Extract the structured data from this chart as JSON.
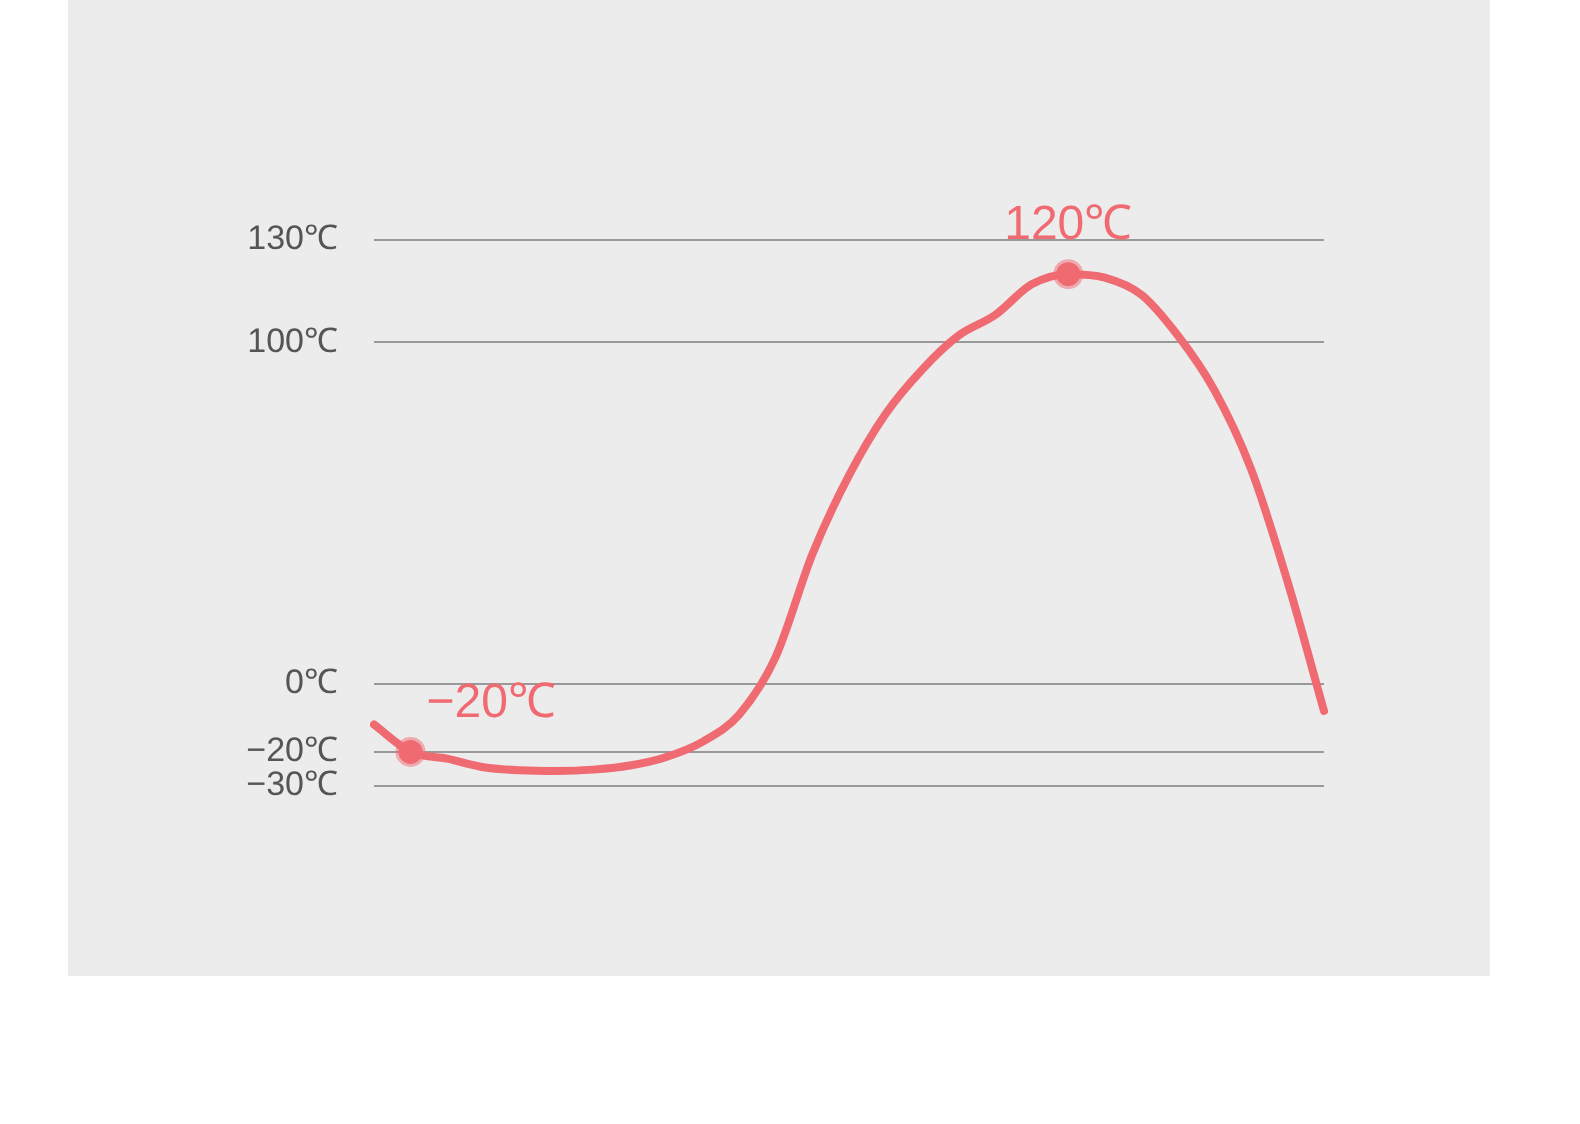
{
  "chart_data": {
    "type": "line",
    "categories": [
      null,
      null,
      null,
      null,
      null,
      null,
      null,
      null,
      null,
      null,
      null,
      null,
      null,
      null,
      null,
      null,
      null,
      null,
      null,
      null,
      null,
      null,
      null,
      null,
      null,
      null,
      null
    ],
    "series": [
      {
        "color": "#f06a72",
        "values": [
          -12,
          -20,
          -22,
          -24.5,
          -25.4,
          -25.6,
          -25.2,
          -24,
          -21.5,
          -17,
          -9,
          8,
          38,
          61,
          79,
          92,
          102,
          108,
          117,
          120,
          119,
          114,
          102,
          86,
          63,
          30,
          -8
        ],
        "value_labels": [
          null,
          "−20℃",
          null,
          null,
          null,
          null,
          null,
          null,
          null,
          null,
          null,
          null,
          null,
          null,
          null,
          null,
          null,
          null,
          null,
          "120℃",
          null,
          null,
          null,
          null,
          null,
          null,
          null
        ]
      }
    ],
    "ylim": [
      -30,
      130
    ],
    "yticks": [
      {
        "value": -30,
        "label": "−30℃"
      },
      {
        "value": -20,
        "label": "−20℃"
      },
      {
        "value": 0,
        "label": "0℃"
      },
      {
        "value": 100,
        "label": "100℃"
      },
      {
        "value": 130,
        "label": "130℃"
      }
    ],
    "grid": "y",
    "legend": false,
    "tick_labels": "y",
    "line_style": "solid"
  }
}
